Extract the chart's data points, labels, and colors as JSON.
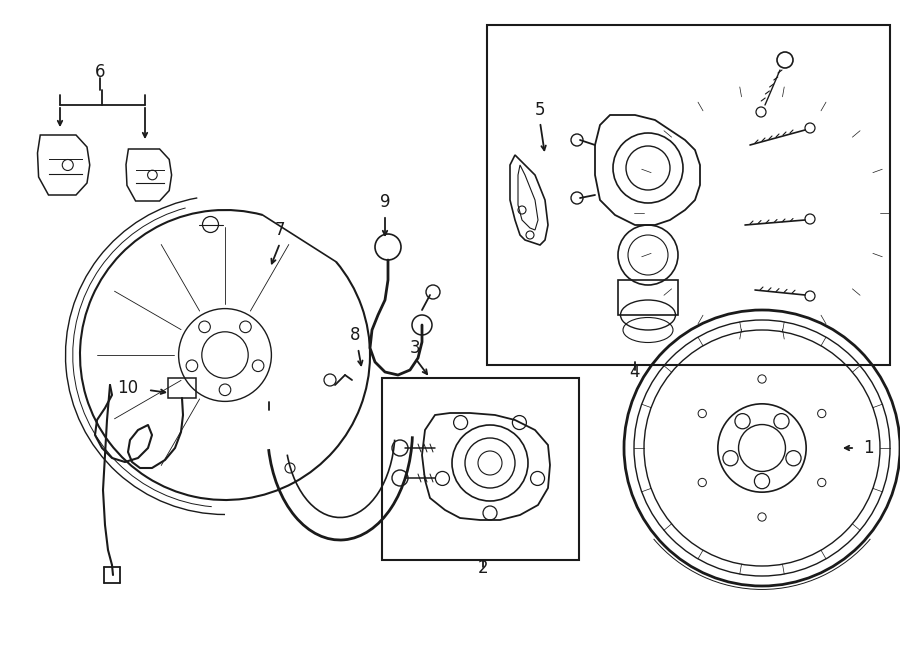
{
  "bg_color": "#ffffff",
  "line_color": "#1a1a1a",
  "fig_width": 9.0,
  "fig_height": 6.61,
  "dpi": 100,
  "label_fontsize": 12
}
